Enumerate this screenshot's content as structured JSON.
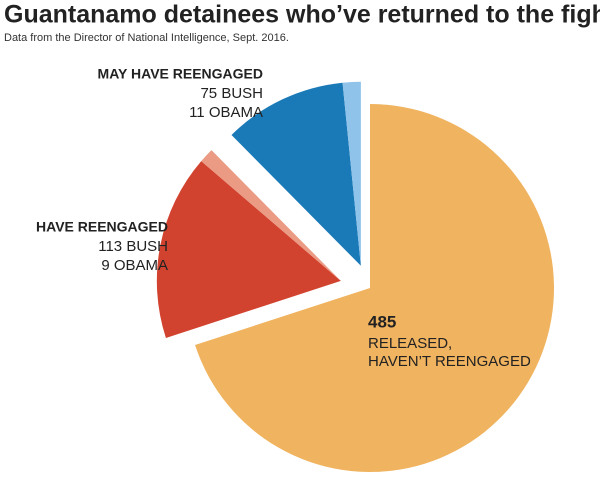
{
  "chart_data": {
    "type": "pie",
    "title": "Guantanamo detainees who’ve returned to the fight",
    "subtitle": "Data from the Director of National Intelligence, Sept. 2016.",
    "groups": [
      {
        "name": [
          "RELEASED,",
          "HAVEN’T REENGAGED"
        ],
        "values": [
          485
        ],
        "colors": [
          "#f0b35f"
        ]
      },
      {
        "name": [
          "HAVE REENGAGED"
        ],
        "values": [
          113,
          9
        ],
        "value_labels": [
          "113 BUSH",
          "9 OBAMA"
        ],
        "colors": [
          "#d2432f",
          "#eb9a83"
        ]
      },
      {
        "name": [
          "MAY HAVE REENGAGED"
        ],
        "values": [
          75,
          11
        ],
        "value_labels": [
          "75 BUSH",
          "11 OBAMA"
        ],
        "colors": [
          "#1a7ab8",
          "#8fc3ea"
        ]
      }
    ]
  }
}
